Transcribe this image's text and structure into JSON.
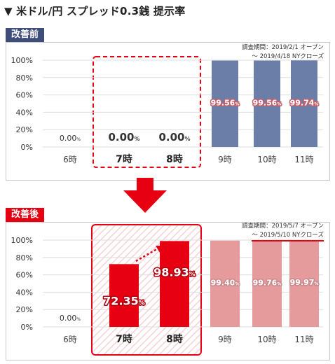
{
  "heading": "▼ 米ドル/円 スプレッド0.3銭 提示率",
  "colors": {
    "before_accent": "#3e4d7a",
    "before_bar": "#6b7ea8",
    "after_accent": "#e60012",
    "after_bar_muted": "#e59a9c",
    "grid": "#dedede"
  },
  "before": {
    "label": "改善前",
    "note_line1": "調査期間：2019/2/1 オープン",
    "note_line2": "〜 2019/4/18 NYクローズ"
  },
  "after": {
    "label": "改善後",
    "note_line1": "調査期間：2019/5/7 オープン",
    "note_line2": "〜 2019/5/10 NYクローズ"
  },
  "chart_data": [
    {
      "type": "bar",
      "panel": "改善前",
      "categories": [
        "6時",
        "7時",
        "8時",
        "9時",
        "10時",
        "11時"
      ],
      "values": [
        0.0,
        0.0,
        0.0,
        99.56,
        99.56,
        99.74
      ],
      "value_labels": [
        "0.00%",
        "0.00%",
        "0.00%",
        "99.56%",
        "99.56%",
        "99.74%"
      ],
      "highlighted_categories": [
        "7時",
        "8時"
      ],
      "y_ticks": [
        "0%",
        "20%",
        "40%",
        "60%",
        "80%",
        "100%"
      ],
      "ylim": [
        0,
        100
      ],
      "grid": true
    },
    {
      "type": "bar",
      "panel": "改善後",
      "categories": [
        "6時",
        "7時",
        "8時",
        "9時",
        "10時",
        "11時"
      ],
      "values": [
        0.0,
        72.35,
        98.93,
        99.4,
        99.76,
        99.97
      ],
      "value_labels": [
        "0.00%",
        "72.35%",
        "98.93%",
        "99.40%",
        "99.76%",
        "99.97%"
      ],
      "highlighted_categories": [
        "7時",
        "8時"
      ],
      "y_ticks": [
        "0%",
        "20%",
        "40%",
        "60%",
        "80%",
        "100%"
      ],
      "ylim": [
        0,
        100
      ],
      "grid": true
    }
  ]
}
